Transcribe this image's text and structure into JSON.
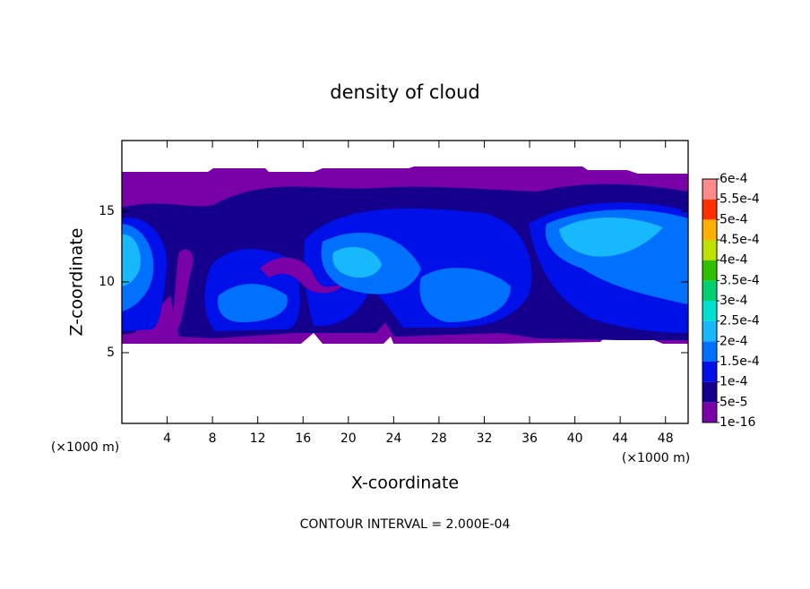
{
  "chart_data": {
    "type": "contour",
    "title": "density of cloud",
    "x_label": "X-coordinate",
    "y_label": "Z-coordinate",
    "x_unit": "(×1000 m)",
    "y_unit": "(×1000 m)",
    "note": "CONTOUR INTERVAL = 2.000E-04",
    "xlim": [
      0,
      50
    ],
    "xticks": [
      4,
      8,
      12,
      16,
      20,
      24,
      28,
      32,
      36,
      40,
      44,
      48
    ],
    "ylim": [
      0,
      20
    ],
    "yticks": [
      5,
      10,
      15
    ],
    "colorbar": {
      "ticks": [
        {
          "value": 1e-16,
          "label": "1e-16"
        },
        {
          "value": 5e-05,
          "label": "5e-5"
        },
        {
          "value": 0.0001,
          "label": "1e-4"
        },
        {
          "value": 0.00015,
          "label": "1.5e-4"
        },
        {
          "value": 0.0002,
          "label": "2e-4"
        },
        {
          "value": 0.00025,
          "label": "2.5e-4"
        },
        {
          "value": 0.0003,
          "label": "3e-4"
        },
        {
          "value": 0.00035,
          "label": "3.5e-4"
        },
        {
          "value": 0.0004,
          "label": "4e-4"
        },
        {
          "value": 0.00045,
          "label": "4.5e-4"
        },
        {
          "value": 0.0005,
          "label": "5e-4"
        },
        {
          "value": 0.00055,
          "label": "5.5e-4"
        },
        {
          "value": 0.0006,
          "label": "6e-4"
        }
      ],
      "colors": [
        "#7a00a8",
        "#14008c",
        "#0010e8",
        "#0070ff",
        "#18b8ff",
        "#00e0d0",
        "#00d070",
        "#30c000",
        "#c0e000",
        "#ffb000",
        "#ff3000",
        "#ff8a8a"
      ]
    }
  }
}
